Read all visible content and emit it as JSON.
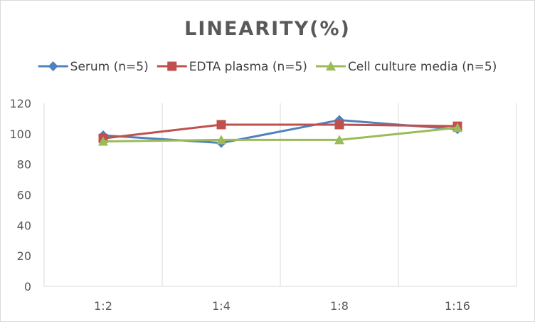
{
  "chart_data": {
    "type": "line",
    "title": "LINEARITY(%)",
    "xlabel": "",
    "ylabel": "",
    "categories": [
      "1:2",
      "1:4",
      "1:8",
      "1:16"
    ],
    "ylim": [
      0,
      120
    ],
    "yticks": [
      0,
      20,
      40,
      60,
      80,
      100,
      120
    ],
    "grid": "vertical-category-gridlines",
    "legend_position": "top",
    "series": [
      {
        "name": "Serum (n=5)",
        "values": [
          99,
          94,
          109,
          103
        ],
        "color": "#4f81bd",
        "marker": "diamond"
      },
      {
        "name": "EDTA plasma (n=5)",
        "values": [
          97,
          106,
          106,
          105
        ],
        "color": "#c0504d",
        "marker": "square"
      },
      {
        "name": "Cell culture media (n=5)",
        "values": [
          95,
          96,
          96,
          104
        ],
        "color": "#9bbb59",
        "marker": "triangle"
      }
    ]
  }
}
